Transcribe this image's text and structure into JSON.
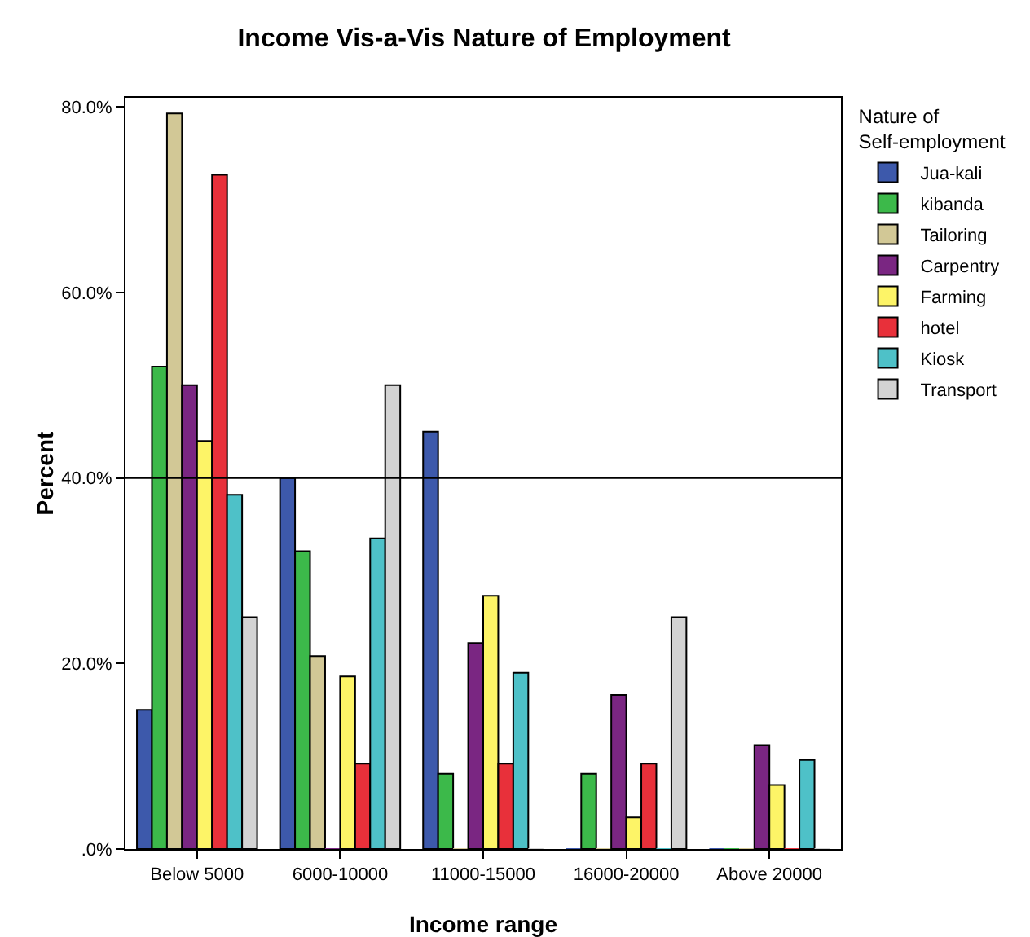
{
  "chart_data": {
    "type": "bar",
    "title": "Income Vis-a-Vis Nature of Employment",
    "xlabel": "Income range",
    "ylabel": "Percent",
    "legend_title": "Nature of Self-employment",
    "legend": "top right",
    "grid": false,
    "categories": [
      "Below 5000",
      "6000-10000",
      "11000-15000",
      "16000-20000",
      "Above 20000"
    ],
    "ylim": [
      0,
      81
    ],
    "yticks": [
      {
        "value": 0,
        "label": ".0%"
      },
      {
        "value": 20,
        "label": "20.0%"
      },
      {
        "value": 40,
        "label": "40.0%"
      },
      {
        "value": 60,
        "label": "60.0%"
      },
      {
        "value": 80,
        "label": "80.0%"
      }
    ],
    "ref_lines": [
      {
        "axis": "y",
        "value": 40,
        "color": "#000000"
      }
    ],
    "series": [
      {
        "name": "Jua-kali",
        "color": "#3d59ab",
        "values": [
          15.0,
          40.0,
          45.0,
          0,
          0
        ]
      },
      {
        "name": "kibanda",
        "color": "#3cb94a",
        "values": [
          52.0,
          32.1,
          8.1,
          8.1,
          0
        ]
      },
      {
        "name": "Tailoring",
        "color": "#d2c896",
        "values": [
          79.3,
          20.8,
          0,
          0,
          0
        ]
      },
      {
        "name": "Carpentry",
        "color": "#7a2682",
        "values": [
          50.0,
          0,
          22.2,
          16.6,
          11.2
        ]
      },
      {
        "name": "Farming",
        "color": "#fdf467",
        "values": [
          44.0,
          18.6,
          27.3,
          3.4,
          6.9
        ]
      },
      {
        "name": "hotel",
        "color": "#e8303a",
        "values": [
          72.7,
          9.2,
          9.2,
          9.2,
          0
        ]
      },
      {
        "name": "Kiosk",
        "color": "#4ec1c8",
        "values": [
          38.2,
          33.5,
          19.0,
          0,
          9.6
        ]
      },
      {
        "name": "Transport",
        "color": "#d3d3d3",
        "values": [
          25.0,
          50.0,
          0,
          25.0,
          0
        ]
      }
    ]
  }
}
